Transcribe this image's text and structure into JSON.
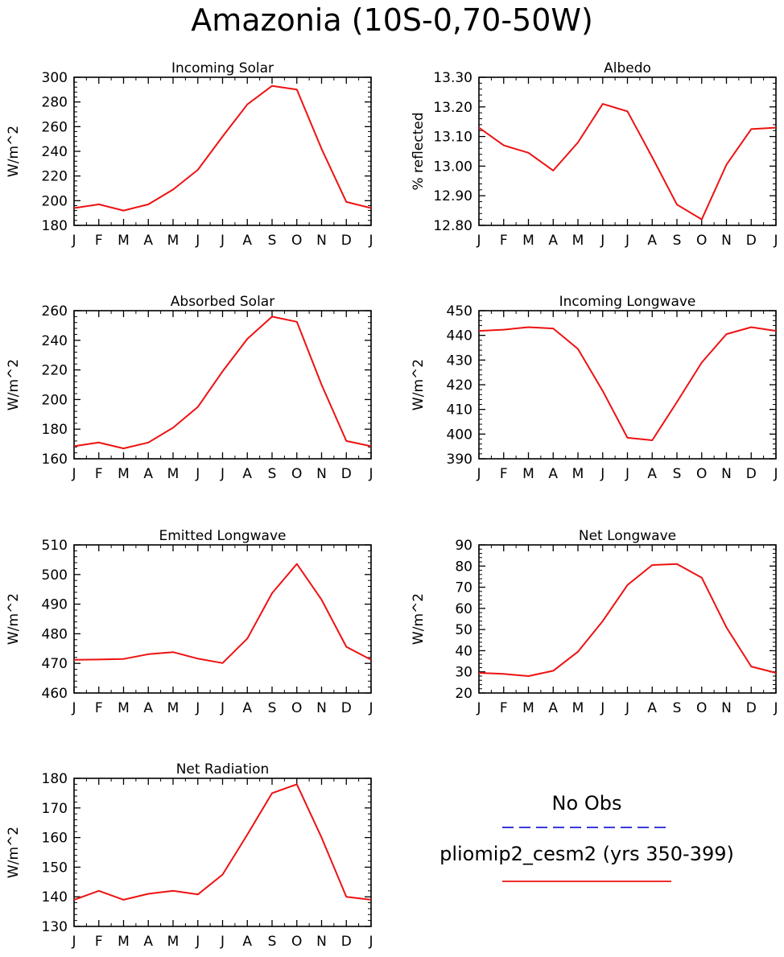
{
  "page": {
    "title": "Amazonia (10S-0,70-50W)"
  },
  "legend": {
    "obs_label": "No Obs",
    "obs_color": "#1f1fd6",
    "model_label": "pliomip2_cesm2 (yrs 350-399)",
    "model_color": "#ee1111"
  },
  "chart_data": [
    {
      "type": "line",
      "title": "Incoming Solar",
      "ylabel": "W/m^2",
      "xlabel": "",
      "categories": [
        "J",
        "F",
        "M",
        "A",
        "M",
        "J",
        "J",
        "A",
        "S",
        "O",
        "N",
        "D",
        "J"
      ],
      "ylim": [
        180,
        300
      ],
      "yticks": [
        180,
        200,
        220,
        240,
        260,
        280,
        300
      ],
      "ytick_labels": [
        "180",
        "200",
        "220",
        "240",
        "260",
        "280",
        "300"
      ],
      "series": [
        {
          "name": "pliomip2_cesm2 (yrs 350-399)",
          "values": [
            194,
            197,
            192,
            197,
            209,
            225,
            252,
            278,
            293,
            290,
            242,
            199,
            194
          ]
        }
      ]
    },
    {
      "type": "line",
      "title": "Albedo",
      "ylabel": "% reflected",
      "xlabel": "",
      "categories": [
        "J",
        "F",
        "M",
        "A",
        "M",
        "J",
        "J",
        "A",
        "S",
        "O",
        "N",
        "D",
        "J"
      ],
      "ylim": [
        12.8,
        13.3
      ],
      "yticks": [
        12.8,
        12.9,
        13.0,
        13.1,
        13.2,
        13.3
      ],
      "ytick_labels": [
        "12.80",
        "12.90",
        "13.00",
        "13.10",
        "13.20",
        "13.30"
      ],
      "series": [
        {
          "name": "pliomip2_cesm2 (yrs 350-399)",
          "values": [
            13.13,
            13.07,
            13.045,
            12.985,
            13.08,
            13.21,
            13.185,
            13.03,
            12.87,
            12.82,
            13.005,
            13.125,
            13.13
          ]
        }
      ]
    },
    {
      "type": "line",
      "title": "Absorbed Solar",
      "ylabel": "W/m^2",
      "xlabel": "",
      "categories": [
        "J",
        "F",
        "M",
        "A",
        "M",
        "J",
        "J",
        "A",
        "S",
        "O",
        "N",
        "D",
        "J"
      ],
      "ylim": [
        160,
        260
      ],
      "yticks": [
        160,
        180,
        200,
        220,
        240,
        260
      ],
      "ytick_labels": [
        "160",
        "180",
        "200",
        "220",
        "240",
        "260"
      ],
      "series": [
        {
          "name": "pliomip2_cesm2 (yrs 350-399)",
          "values": [
            168.5,
            171,
            167,
            171,
            181,
            195,
            219,
            241,
            256,
            252.5,
            210,
            172,
            168.5
          ]
        }
      ]
    },
    {
      "type": "line",
      "title": "Incoming Longwave",
      "ylabel": "W/m^2",
      "xlabel": "",
      "categories": [
        "J",
        "F",
        "M",
        "A",
        "M",
        "J",
        "J",
        "A",
        "S",
        "O",
        "N",
        "D",
        "J"
      ],
      "ylim": [
        390,
        450
      ],
      "yticks": [
        390,
        400,
        410,
        420,
        430,
        440,
        450
      ],
      "ytick_labels": [
        "390",
        "400",
        "410",
        "420",
        "430",
        "440",
        "450"
      ],
      "series": [
        {
          "name": "pliomip2_cesm2 (yrs 350-399)",
          "values": [
            441.8,
            442.3,
            443.3,
            442.8,
            434.5,
            417.5,
            398.5,
            397.5,
            413,
            429,
            440.5,
            443.3,
            441.8
          ]
        }
      ]
    },
    {
      "type": "line",
      "title": "Emitted Longwave",
      "ylabel": "W/m^2",
      "xlabel": "",
      "categories": [
        "J",
        "F",
        "M",
        "A",
        "M",
        "J",
        "J",
        "A",
        "S",
        "O",
        "N",
        "D",
        "J"
      ],
      "ylim": [
        460,
        510
      ],
      "yticks": [
        460,
        470,
        480,
        490,
        500,
        510
      ],
      "ytick_labels": [
        "460",
        "470",
        "480",
        "490",
        "500",
        "510"
      ],
      "series": [
        {
          "name": "pliomip2_cesm2 (yrs 350-399)",
          "values": [
            471.2,
            471.3,
            471.5,
            473.1,
            473.8,
            471.6,
            470.1,
            478.4,
            493.7,
            503.6,
            491.5,
            475.6,
            471.2
          ]
        }
      ]
    },
    {
      "type": "line",
      "title": "Net Longwave",
      "ylabel": "W/m^2",
      "xlabel": "",
      "categories": [
        "J",
        "F",
        "M",
        "A",
        "M",
        "J",
        "J",
        "A",
        "S",
        "O",
        "N",
        "D",
        "J"
      ],
      "ylim": [
        20,
        90
      ],
      "yticks": [
        20,
        30,
        40,
        50,
        60,
        70,
        80,
        90
      ],
      "ytick_labels": [
        "20",
        "30",
        "40",
        "50",
        "60",
        "70",
        "80",
        "90"
      ],
      "series": [
        {
          "name": "pliomip2_cesm2 (yrs 350-399)",
          "values": [
            29.5,
            29,
            28,
            30.5,
            39.5,
            54,
            71,
            80.5,
            81,
            74.5,
            51,
            32.5,
            29.5
          ]
        }
      ]
    },
    {
      "type": "line",
      "title": "Net Radiation",
      "ylabel": "W/m^2",
      "xlabel": "",
      "categories": [
        "J",
        "F",
        "M",
        "A",
        "M",
        "J",
        "J",
        "A",
        "S",
        "O",
        "N",
        "D",
        "J"
      ],
      "ylim": [
        130,
        180
      ],
      "yticks": [
        130,
        140,
        150,
        160,
        170,
        180
      ],
      "ytick_labels": [
        "130",
        "140",
        "150",
        "160",
        "170",
        "180"
      ],
      "series": [
        {
          "name": "pliomip2_cesm2 (yrs 350-399)",
          "values": [
            139,
            142,
            139,
            141,
            142,
            140.8,
            147.5,
            161,
            175,
            178,
            160,
            140,
            139
          ]
        }
      ]
    }
  ]
}
